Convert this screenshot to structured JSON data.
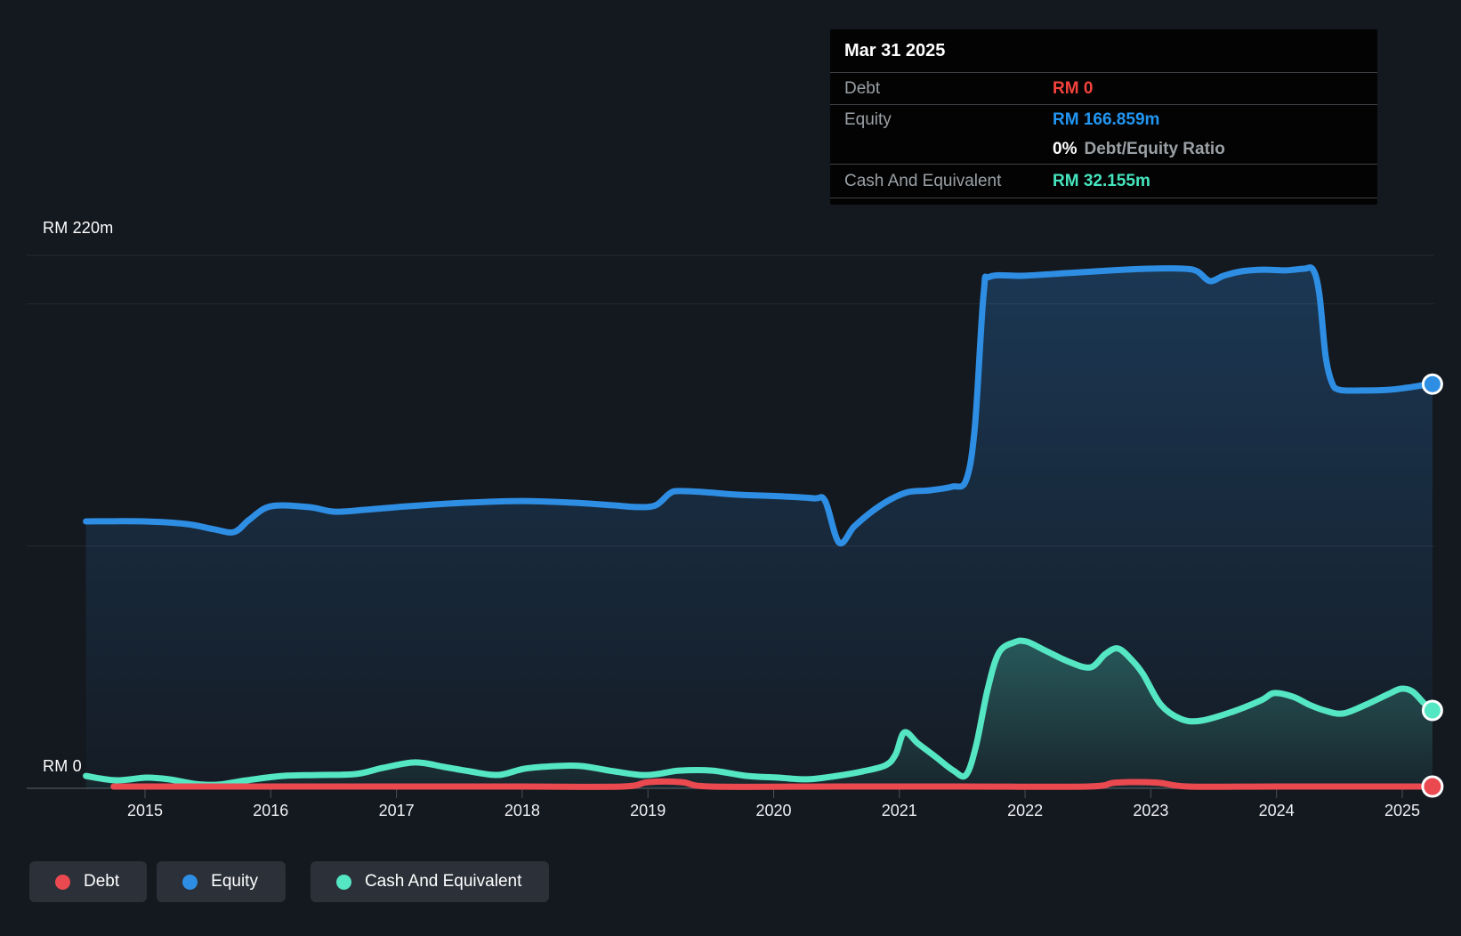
{
  "colors": {
    "page_bg": "#14181f",
    "debt": "#e9494f",
    "debt_text": "#f4433c",
    "equity": "#2e8ee4",
    "equity_text": "#2196f3",
    "cash": "#55e6c3",
    "cash_text": "#45e5bd",
    "muted_label": "#9aa0a5",
    "gridline": "rgba(255,255,255,0.08)",
    "axis_line": "#454a52",
    "tick": "#4b5158"
  },
  "y_axis": {
    "top_label": "RM 220m",
    "zero_label": "RM 0"
  },
  "x_axis": {
    "years": [
      "2015",
      "2016",
      "2017",
      "2018",
      "2019",
      "2020",
      "2021",
      "2022",
      "2023",
      "2024",
      "2025"
    ]
  },
  "tooltip": {
    "date": "Mar 31 2025",
    "debt_label": "Debt",
    "debt_value": "RM 0",
    "equity_label": "Equity",
    "equity_value": "RM 166.859m",
    "ratio_value": "0%",
    "ratio_label": "Debt/Equity Ratio",
    "cash_label": "Cash And Equivalent",
    "cash_value": "RM 32.155m"
  },
  "legend": {
    "items": [
      {
        "label": "Debt",
        "color": "#e9494f"
      },
      {
        "label": "Equity",
        "color": "#2e8ee4"
      },
      {
        "label": "Cash And Equivalent",
        "color": "#55e6c3"
      }
    ]
  },
  "chart_data": {
    "type": "area",
    "title": "Debt to Equity History (RM millions)",
    "x_unit": "year",
    "y_unit": "RM millions",
    "ylim": [
      0,
      220
    ],
    "xlim": [
      2014.5,
      2025.3
    ],
    "gridlines_rm": [
      220,
      200,
      100,
      0
    ],
    "legend_position": "bottom-left",
    "series": [
      {
        "name": "Equity",
        "points": [
          [
            2014.53,
            110.2
          ],
          [
            2015.0,
            110.2
          ],
          [
            2015.33,
            109.1
          ],
          [
            2015.55,
            106.9
          ],
          [
            2015.71,
            105.8
          ],
          [
            2015.83,
            110.9
          ],
          [
            2016.0,
            116.4
          ],
          [
            2016.3,
            116.1
          ],
          [
            2016.51,
            114.2
          ],
          [
            2016.76,
            115.0
          ],
          [
            2017.08,
            116.4
          ],
          [
            2017.55,
            117.9
          ],
          [
            2018.0,
            118.6
          ],
          [
            2018.41,
            117.9
          ],
          [
            2018.73,
            116.8
          ],
          [
            2018.91,
            116.1
          ],
          [
            2019.06,
            116.8
          ],
          [
            2019.17,
            121.6
          ],
          [
            2019.24,
            122.7
          ],
          [
            2019.44,
            122.3
          ],
          [
            2019.72,
            121.2
          ],
          [
            2020.07,
            120.5
          ],
          [
            2020.32,
            119.7
          ],
          [
            2020.41,
            118.6
          ],
          [
            2020.52,
            101.4
          ],
          [
            2020.64,
            108.0
          ],
          [
            2020.78,
            114.2
          ],
          [
            2020.92,
            119.0
          ],
          [
            2021.07,
            122.3
          ],
          [
            2021.24,
            123.0
          ],
          [
            2021.42,
            124.5
          ],
          [
            2021.53,
            127.1
          ],
          [
            2021.6,
            149.1
          ],
          [
            2021.67,
            204.2
          ],
          [
            2021.72,
            211.2
          ],
          [
            2021.99,
            211.6
          ],
          [
            2022.34,
            212.7
          ],
          [
            2022.69,
            213.8
          ],
          [
            2022.98,
            214.5
          ],
          [
            2023.26,
            214.5
          ],
          [
            2023.37,
            213.4
          ],
          [
            2023.47,
            209.4
          ],
          [
            2023.58,
            211.6
          ],
          [
            2023.72,
            213.4
          ],
          [
            2023.9,
            214.1
          ],
          [
            2024.07,
            213.8
          ],
          [
            2024.22,
            214.5
          ],
          [
            2024.29,
            214.1
          ],
          [
            2024.34,
            204.2
          ],
          [
            2024.39,
            178.5
          ],
          [
            2024.44,
            167.5
          ],
          [
            2024.5,
            164.5
          ],
          [
            2024.68,
            164.2
          ],
          [
            2024.89,
            164.5
          ],
          [
            2025.03,
            165.3
          ],
          [
            2025.17,
            166.4
          ],
          [
            2025.24,
            166.859
          ]
        ]
      },
      {
        "name": "Cash And Equivalent",
        "points": [
          [
            2014.53,
            5.1
          ],
          [
            2014.77,
            3.3
          ],
          [
            2015.01,
            4.4
          ],
          [
            2015.19,
            3.7
          ],
          [
            2015.4,
            1.8
          ],
          [
            2015.58,
            1.5
          ],
          [
            2015.81,
            3.3
          ],
          [
            2016.09,
            5.1
          ],
          [
            2016.39,
            5.5
          ],
          [
            2016.68,
            5.9
          ],
          [
            2016.89,
            8.4
          ],
          [
            2017.15,
            10.7
          ],
          [
            2017.38,
            8.8
          ],
          [
            2017.58,
            7.0
          ],
          [
            2017.81,
            5.5
          ],
          [
            2018.02,
            8.1
          ],
          [
            2018.27,
            9.2
          ],
          [
            2018.47,
            9.2
          ],
          [
            2018.73,
            7.0
          ],
          [
            2018.94,
            5.5
          ],
          [
            2019.08,
            5.9
          ],
          [
            2019.25,
            7.3
          ],
          [
            2019.51,
            7.3
          ],
          [
            2019.79,
            5.1
          ],
          [
            2020.04,
            4.4
          ],
          [
            2020.27,
            3.7
          ],
          [
            2020.5,
            5.1
          ],
          [
            2020.71,
            7.0
          ],
          [
            2020.89,
            9.5
          ],
          [
            2020.97,
            14.0
          ],
          [
            2021.04,
            23.1
          ],
          [
            2021.15,
            18.4
          ],
          [
            2021.29,
            12.9
          ],
          [
            2021.43,
            7.3
          ],
          [
            2021.53,
            5.5
          ],
          [
            2021.61,
            17.6
          ],
          [
            2021.7,
            40.4
          ],
          [
            2021.79,
            55.8
          ],
          [
            2021.91,
            60.2
          ],
          [
            2022.01,
            60.6
          ],
          [
            2022.16,
            56.9
          ],
          [
            2022.35,
            52.2
          ],
          [
            2022.52,
            49.9
          ],
          [
            2022.64,
            55.5
          ],
          [
            2022.74,
            57.7
          ],
          [
            2022.85,
            52.9
          ],
          [
            2022.94,
            47.0
          ],
          [
            2023.08,
            34.5
          ],
          [
            2023.24,
            28.6
          ],
          [
            2023.4,
            27.9
          ],
          [
            2023.65,
            31.6
          ],
          [
            2023.88,
            36.4
          ],
          [
            2023.98,
            39.3
          ],
          [
            2024.13,
            37.8
          ],
          [
            2024.26,
            34.5
          ],
          [
            2024.39,
            32.0
          ],
          [
            2024.53,
            30.9
          ],
          [
            2024.71,
            34.5
          ],
          [
            2024.89,
            38.9
          ],
          [
            2024.99,
            41.1
          ],
          [
            2025.08,
            40.0
          ],
          [
            2025.17,
            35.3
          ],
          [
            2025.24,
            32.155
          ]
        ]
      },
      {
        "name": "Debt",
        "points": [
          [
            2014.75,
            0
          ],
          [
            2016.0,
            0
          ],
          [
            2017.0,
            0
          ],
          [
            2018.0,
            0
          ],
          [
            2018.8,
            0
          ],
          [
            2019.0,
            1.8
          ],
          [
            2019.27,
            1.8
          ],
          [
            2019.5,
            0
          ],
          [
            2020.5,
            0
          ],
          [
            2021.5,
            0
          ],
          [
            2022.5,
            0
          ],
          [
            2022.72,
            1.6
          ],
          [
            2023.05,
            1.6
          ],
          [
            2023.3,
            0
          ],
          [
            2024.0,
            0
          ],
          [
            2025.0,
            0
          ],
          [
            2025.24,
            0
          ]
        ]
      }
    ]
  }
}
